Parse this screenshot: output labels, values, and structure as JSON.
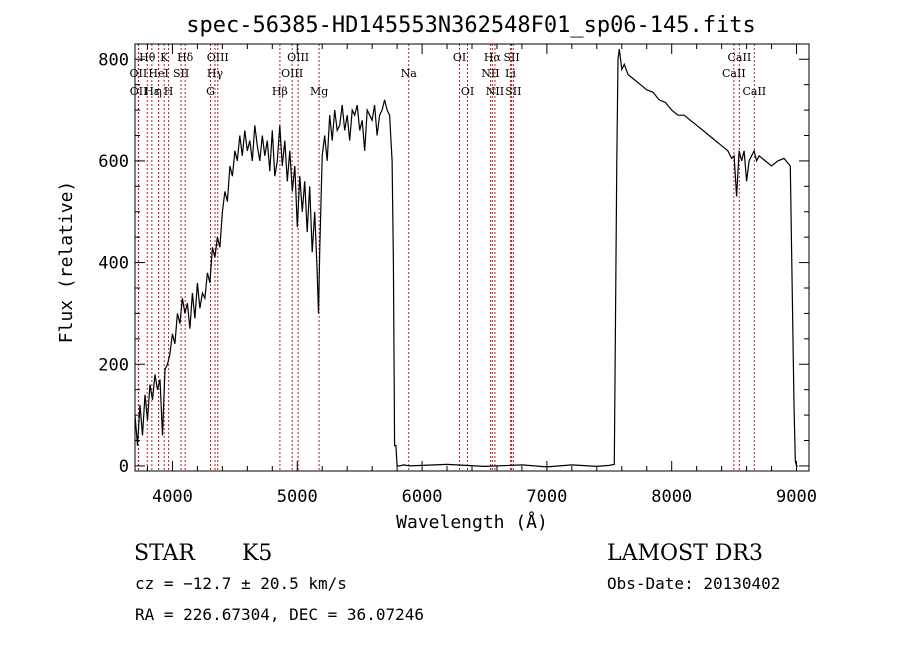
{
  "chart_data": {
    "type": "line",
    "title": "spec-56385-HD145553N362548F01_sp06-145.fits",
    "xlabel": "Wavelength (Å)",
    "ylabel": "Flux (relative)",
    "xlim": [
      3700,
      9100
    ],
    "ylim": [
      -10,
      830
    ],
    "xticks": [
      4000,
      5000,
      6000,
      7000,
      8000,
      9000
    ],
    "yticks": [
      0,
      200,
      400,
      600,
      800
    ],
    "grid": false,
    "line_color": "#000000",
    "marker_color": "#b22222",
    "series": [
      {
        "x": [
          3700,
          3720,
          3740,
          3760,
          3780,
          3800,
          3820,
          3840,
          3860,
          3880,
          3900,
          3920,
          3940,
          3960,
          3980,
          4000,
          4020,
          4040,
          4060,
          4080,
          4100,
          4120,
          4140,
          4160,
          4180,
          4200,
          4220,
          4240,
          4260,
          4280,
          4300,
          4320,
          4340,
          4360,
          4380,
          4400,
          4420,
          4440,
          4460,
          4480,
          4500,
          4520,
          4540,
          4560,
          4580,
          4600,
          4620,
          4640,
          4660,
          4680,
          4700,
          4720,
          4740,
          4760,
          4780,
          4800,
          4820,
          4840,
          4860,
          4880,
          4900,
          4920,
          4940,
          4960,
          4980,
          5000,
          5020,
          5040,
          5060,
          5080,
          5100,
          5120,
          5140,
          5160,
          5170,
          5180,
          5190,
          5200,
          5220,
          5240,
          5260,
          5280,
          5300,
          5320,
          5340,
          5360,
          5380,
          5400,
          5420,
          5440,
          5460,
          5480,
          5500,
          5520,
          5540,
          5560,
          5580,
          5600,
          5620,
          5640,
          5660,
          5680,
          5700,
          5720,
          5740,
          5760,
          5770,
          5780,
          5790,
          5800,
          5820,
          5850,
          5900,
          6000,
          6200,
          6500,
          6800,
          7000,
          7200,
          7400,
          7500,
          7540,
          7560,
          7570,
          7580,
          7600,
          7620,
          7650,
          7700,
          7750,
          7800,
          7850,
          7900,
          7950,
          8000,
          8050,
          8100,
          8150,
          8200,
          8250,
          8300,
          8350,
          8400,
          8450,
          8480,
          8500,
          8520,
          8540,
          8560,
          8580,
          8600,
          8620,
          8640,
          8660,
          8680,
          8700,
          8750,
          8800,
          8850,
          8900,
          8950,
          8980,
          8990,
          9000,
          9010
        ],
        "y": [
          100,
          40,
          120,
          60,
          140,
          90,
          160,
          130,
          180,
          150,
          170,
          60,
          190,
          200,
          220,
          260,
          240,
          300,
          280,
          330,
          300,
          320,
          270,
          340,
          290,
          360,
          310,
          340,
          330,
          380,
          360,
          430,
          410,
          450,
          430,
          500,
          540,
          520,
          590,
          570,
          620,
          600,
          650,
          610,
          660,
          620,
          640,
          600,
          670,
          630,
          600,
          650,
          610,
          640,
          580,
          660,
          570,
          600,
          670,
          590,
          640,
          560,
          620,
          540,
          590,
          470,
          570,
          500,
          560,
          460,
          550,
          420,
          500,
          380,
          300,
          420,
          520,
          610,
          650,
          600,
          690,
          640,
          700,
          660,
          670,
          710,
          660,
          690,
          640,
          700,
          690,
          710,
          660,
          680,
          620,
          700,
          690,
          680,
          710,
          650,
          690,
          700,
          720,
          700,
          690,
          600,
          400,
          40,
          40,
          0,
          0,
          2,
          0,
          1,
          3,
          -1,
          2,
          -2,
          2,
          -1,
          1,
          3,
          600,
          800,
          820,
          780,
          790,
          770,
          760,
          750,
          740,
          735,
          720,
          715,
          700,
          690,
          690,
          680,
          670,
          660,
          650,
          640,
          630,
          620,
          605,
          610,
          530,
          620,
          600,
          620,
          560,
          600,
          610,
          620,
          600,
          610,
          600,
          590,
          600,
          605,
          590,
          120,
          10,
          0,
          0
        ]
      }
    ],
    "line_markers": [
      {
        "label": "Hθ",
        "x": 3798,
        "row": 1
      },
      {
        "label": "OII",
        "x": 3727,
        "row": 2
      },
      {
        "label": "OII",
        "x": 3729,
        "row": 3
      },
      {
        "label": "Hε",
        "x": 3835,
        "row": 3
      },
      {
        "label": "HeI",
        "x": 3889,
        "row": 2
      },
      {
        "label": "η",
        "x": 3889,
        "row": 3
      },
      {
        "label": "K",
        "x": 3934,
        "row": 1
      },
      {
        "label": "H",
        "x": 3969,
        "row": 3
      },
      {
        "label": "SII",
        "x": 4069,
        "row": 2
      },
      {
        "label": "Hδ",
        "x": 4102,
        "row": 1
      },
      {
        "label": "OIII",
        "x": 4363,
        "row": 1
      },
      {
        "label": "Hγ",
        "x": 4341,
        "row": 2
      },
      {
        "label": "G",
        "x": 4305,
        "row": 3
      },
      {
        "label": "Hβ",
        "x": 4861,
        "row": 3
      },
      {
        "label": "OIII",
        "x": 5007,
        "row": 1
      },
      {
        "label": "OIII",
        "x": 4959,
        "row": 2
      },
      {
        "label": "Mg",
        "x": 5175,
        "row": 3
      },
      {
        "label": "Na",
        "x": 5893,
        "row": 2
      },
      {
        "label": "OI",
        "x": 6300,
        "row": 1
      },
      {
        "label": "OI",
        "x": 6364,
        "row": 3
      },
      {
        "label": "Hα",
        "x": 6563,
        "row": 1
      },
      {
        "label": "NII",
        "x": 6548,
        "row": 2
      },
      {
        "label": "NII",
        "x": 6584,
        "row": 3
      },
      {
        "label": "SII",
        "x": 6717,
        "row": 1
      },
      {
        "label": "Li",
        "x": 6708,
        "row": 2
      },
      {
        "label": "SII",
        "x": 6731,
        "row": 3
      },
      {
        "label": "CaII",
        "x": 8542,
        "row": 1
      },
      {
        "label": "CaII",
        "x": 8498,
        "row": 2
      },
      {
        "label": "CaII",
        "x": 8662,
        "row": 3
      }
    ]
  },
  "info": {
    "class": "STAR",
    "subclass": "K5",
    "survey": "LAMOST DR3",
    "cz": "cz = −12.7 ± 20.5 km/s",
    "obs_date": "Obs-Date: 20130402",
    "coords": "RA = 226.67304, DEC =  36.07246"
  }
}
